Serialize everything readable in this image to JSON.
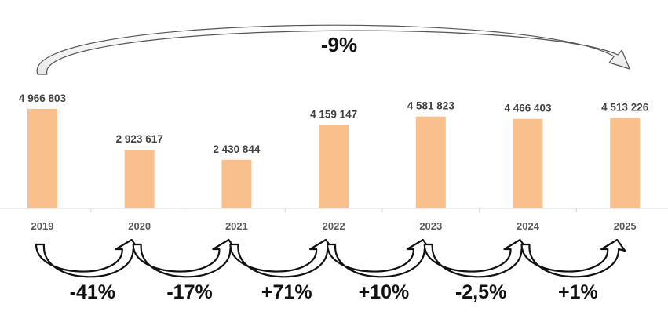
{
  "chart_data": {
    "type": "bar",
    "categories": [
      "2019",
      "2020",
      "2021",
      "2022",
      "2023",
      "2024",
      "2025"
    ],
    "values": [
      4966803,
      2923617,
      2430844,
      4159147,
      4581823,
      4466403,
      4513226
    ],
    "value_labels": [
      "4 966 803",
      "2 923 617",
      "2 430 844",
      "4 159 147",
      "4 581 823",
      "4 466 403",
      "4 513 226"
    ],
    "ylim": [
      0,
      5000000
    ],
    "grid": false,
    "legend": "none",
    "bar_color": "#F9C08E",
    "year_over_year_changes": [
      "-41%",
      "-17%",
      "+71%",
      "+10%",
      "-2,5%",
      "+1%"
    ],
    "overall_change": "-9%"
  }
}
